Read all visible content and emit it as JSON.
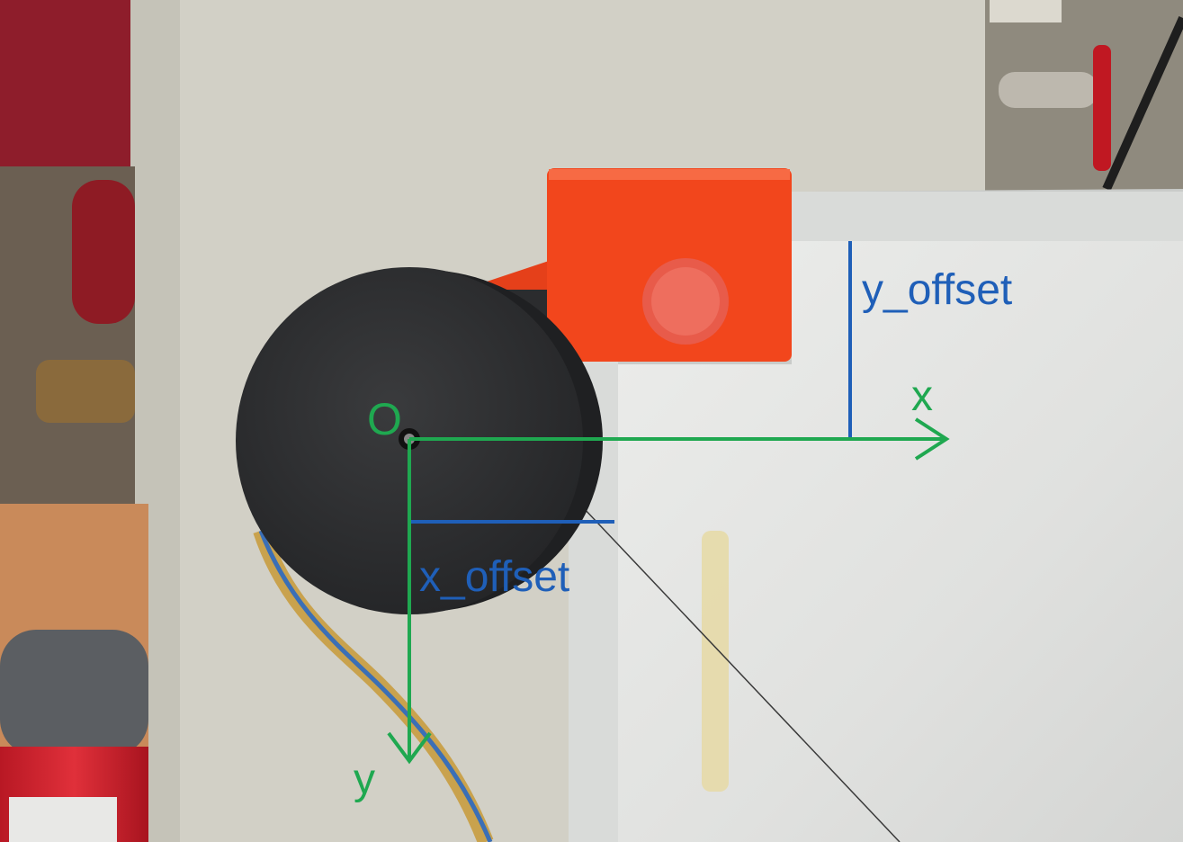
{
  "labels": {
    "origin": "O",
    "x_axis": "x",
    "y_axis": "y",
    "x_offset": "x_offset",
    "y_offset": "y_offset"
  },
  "colors": {
    "axis_green": "#1fa850",
    "offset_blue": "#1f5fb8",
    "mount_orange": "#f2461c",
    "spool_black": "#2b2c2e",
    "board_white": "#e4e5e3"
  },
  "objects": {
    "spool": "black cylindrical spool with center hole",
    "mount": "orange bracket with knob",
    "board": "whiteboard with aluminum frame",
    "extinguisher": "red fire extinguisher"
  }
}
